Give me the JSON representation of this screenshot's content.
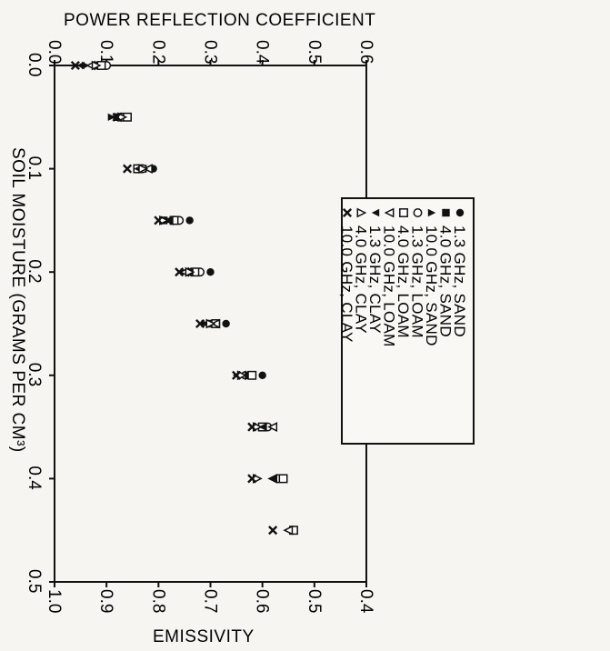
{
  "chart_data": {
    "type": "scatter",
    "title": "",
    "top_axis_label": "POWER REFLECTION COEFFICIENT",
    "bottom_axis_label": "EMISSIVITY",
    "moisture_axis_label": "SOIL MOISTURE (GRAMS PER CM³)",
    "reflection_ticks": [
      "0.0",
      "0.1",
      "0.2",
      "0.3",
      "0.4",
      "0.5",
      "0.6"
    ],
    "emissivity_ticks": [
      "1.0",
      "0.9",
      "0.8",
      "0.7",
      "0.6",
      "0.5",
      "0.4"
    ],
    "moisture_ticks": [
      "0.0",
      "0.1",
      "0.2",
      "0.3",
      "0.4",
      "0.5"
    ],
    "reflection_range": [
      0,
      0.6
    ],
    "emissivity_range": [
      1.0,
      0.4
    ],
    "moisture_range": [
      0,
      0.5
    ],
    "legend_position": "right",
    "series": [
      {
        "name": "1.3 GHz, SAND",
        "marker": "filled-circle",
        "points": [
          [
            0.0,
            0.09
          ],
          [
            0.05,
            0.13
          ],
          [
            0.1,
            0.19
          ],
          [
            0.15,
            0.26
          ],
          [
            0.2,
            0.3
          ],
          [
            0.25,
            0.33
          ],
          [
            0.3,
            0.4
          ]
        ]
      },
      {
        "name": "4.0 GHz, SAND",
        "marker": "filled-square",
        "points": [
          [
            0.0,
            0.08
          ],
          [
            0.05,
            0.12
          ],
          [
            0.1,
            0.17
          ],
          [
            0.15,
            0.21
          ],
          [
            0.2,
            0.26
          ],
          [
            0.25,
            0.3
          ],
          [
            0.3,
            0.37
          ]
        ]
      },
      {
        "name": "10.0 GHz, SAND",
        "marker": "filled-triangle-down",
        "points": [
          [
            0.0,
            0.06
          ],
          [
            0.05,
            0.11
          ],
          [
            0.1,
            0.16
          ],
          [
            0.15,
            0.22
          ],
          [
            0.2,
            0.25
          ],
          [
            0.25,
            0.29
          ],
          [
            0.3,
            0.36
          ]
        ]
      },
      {
        "name": "1.3 GHz, LOAM",
        "marker": "open-circle",
        "points": [
          [
            0.0,
            0.1
          ],
          [
            0.05,
            0.13
          ],
          [
            0.1,
            0.17
          ],
          [
            0.15,
            0.24
          ],
          [
            0.2,
            0.28
          ],
          [
            0.25,
            0.31
          ],
          [
            0.3,
            0.38
          ],
          [
            0.35,
            0.41
          ],
          [
            0.4,
            0.43
          ]
        ]
      },
      {
        "name": "4.0 GHz, LOAM",
        "marker": "open-square",
        "points": [
          [
            0.0,
            0.09
          ],
          [
            0.05,
            0.14
          ],
          [
            0.1,
            0.16
          ],
          [
            0.15,
            0.23
          ],
          [
            0.2,
            0.27
          ],
          [
            0.25,
            0.31
          ],
          [
            0.3,
            0.38
          ],
          [
            0.35,
            0.4
          ],
          [
            0.4,
            0.44
          ],
          [
            0.45,
            0.46
          ]
        ]
      },
      {
        "name": "10.0 GHz, LOAM",
        "marker": "open-triangle",
        "points": [
          [
            0.0,
            0.07
          ],
          [
            0.05,
            0.12
          ],
          [
            0.1,
            0.18
          ],
          [
            0.15,
            0.22
          ],
          [
            0.2,
            0.25
          ],
          [
            0.25,
            0.31
          ],
          [
            0.3,
            0.36
          ],
          [
            0.35,
            0.42
          ],
          [
            0.4,
            0.42
          ],
          [
            0.45,
            0.45
          ]
        ]
      },
      {
        "name": "1.3 GHz, CLAY",
        "marker": "filled-triangle",
        "points": [
          [
            0.0,
            0.05
          ],
          [
            0.05,
            0.12
          ],
          [
            0.1,
            0.16
          ],
          [
            0.15,
            0.22
          ],
          [
            0.2,
            0.26
          ],
          [
            0.25,
            0.29
          ],
          [
            0.3,
            0.35
          ],
          [
            0.35,
            0.4
          ],
          [
            0.4,
            0.42
          ]
        ]
      },
      {
        "name": "4.0 GHz, CLAY",
        "marker": "open-triangle-down",
        "points": [
          [
            0.0,
            0.08
          ],
          [
            0.05,
            0.13
          ],
          [
            0.1,
            0.17
          ],
          [
            0.15,
            0.21
          ],
          [
            0.2,
            0.26
          ],
          [
            0.25,
            0.3
          ],
          [
            0.3,
            0.36
          ],
          [
            0.35,
            0.39
          ],
          [
            0.4,
            0.39
          ]
        ]
      },
      {
        "name": "10.0 GHz, CLAY",
        "marker": "x",
        "points": [
          [
            0.0,
            0.04
          ],
          [
            0.05,
            0.12
          ],
          [
            0.1,
            0.14
          ],
          [
            0.15,
            0.2
          ],
          [
            0.2,
            0.24
          ],
          [
            0.25,
            0.28
          ],
          [
            0.3,
            0.35
          ],
          [
            0.35,
            0.38
          ],
          [
            0.4,
            0.38
          ],
          [
            0.45,
            0.42
          ]
        ]
      }
    ]
  }
}
